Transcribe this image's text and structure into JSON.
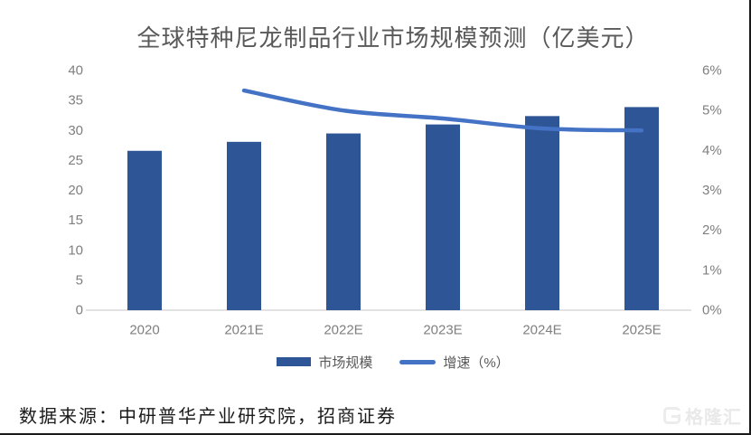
{
  "chart_data": {
    "type": "combo",
    "title": "全球特种尼龙制品行业市场规模预测（亿美元）",
    "categories": [
      "2020",
      "2021E",
      "2022E",
      "2023E",
      "2024E",
      "2025E"
    ],
    "series": [
      {
        "name": "市场规模",
        "type": "bar",
        "axis": "left",
        "color": "#2E5596",
        "values": [
          26.6,
          28.1,
          29.5,
          31.0,
          32.4,
          33.9
        ]
      },
      {
        "name": "增速（%）",
        "type": "line",
        "axis": "right",
        "color": "#4472C4",
        "values": [
          null,
          5.5,
          5.0,
          4.8,
          4.55,
          4.5
        ]
      }
    ],
    "left_axis": {
      "min": 0,
      "max": 40,
      "step": 5,
      "tick_labels": [
        "0",
        "5",
        "10",
        "15",
        "20",
        "25",
        "30",
        "35",
        "40"
      ]
    },
    "right_axis": {
      "min": 0,
      "max": 6,
      "step": 1,
      "tick_labels": [
        "0%",
        "1%",
        "2%",
        "3%",
        "4%",
        "5%",
        "6%"
      ]
    },
    "grid": false,
    "legend_position": "bottom",
    "axis_line_color": "#d9d9d9",
    "tick_label_color": "#7f7f7f",
    "title_color": "#595959"
  },
  "source": {
    "text": "数据来源：中研普华产业研究院，招商证券"
  },
  "watermark": {
    "text": "格隆汇",
    "icon": "gelonghui-g-logo",
    "color": "#ececec"
  }
}
